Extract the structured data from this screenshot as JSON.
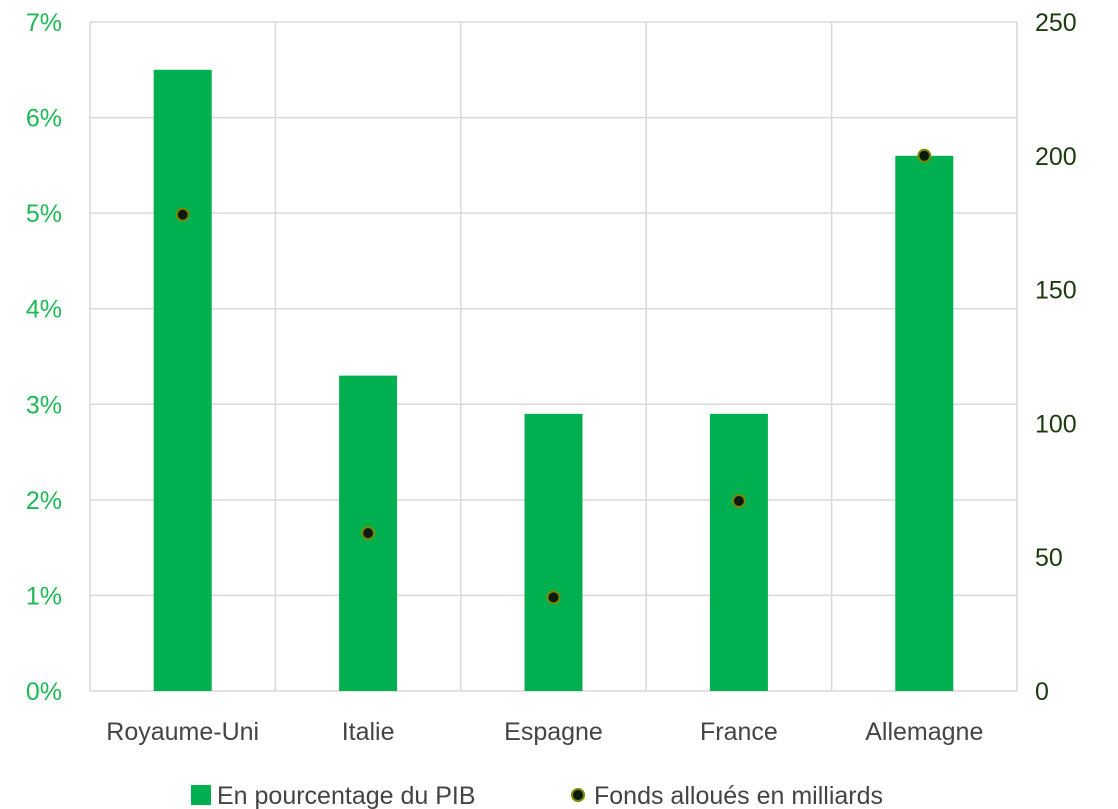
{
  "chart_data": {
    "type": "bar",
    "categories": [
      "Royaume-Uni",
      "Italie",
      "Espagne",
      "France",
      "Allemagne"
    ],
    "series": [
      {
        "name": "En pourcentage du PIB",
        "kind": "bar",
        "axis": "left",
        "values": [
          6.5,
          3.3,
          2.9,
          2.9,
          5.6
        ],
        "color": "#00b050"
      },
      {
        "name": "Fonds alloués en milliards",
        "kind": "scatter",
        "axis": "right",
        "values": [
          178,
          59,
          35,
          71,
          200
        ],
        "color": "#0b1a0b",
        "edge_color": "#7a8a00"
      }
    ],
    "y_left": {
      "ylim": [
        0,
        7
      ],
      "ticks": [
        "0%",
        "1%",
        "2%",
        "3%",
        "4%",
        "5%",
        "6%",
        "7%"
      ],
      "color": "#1db954"
    },
    "y_right": {
      "ylim": [
        0,
        250
      ],
      "ticks": [
        "0",
        "50",
        "100",
        "150",
        "200",
        "250"
      ],
      "color": "#1d3a0f"
    },
    "grid": true,
    "legend_position": "bottom",
    "title": "",
    "xlabel": "",
    "ylabel": ""
  }
}
